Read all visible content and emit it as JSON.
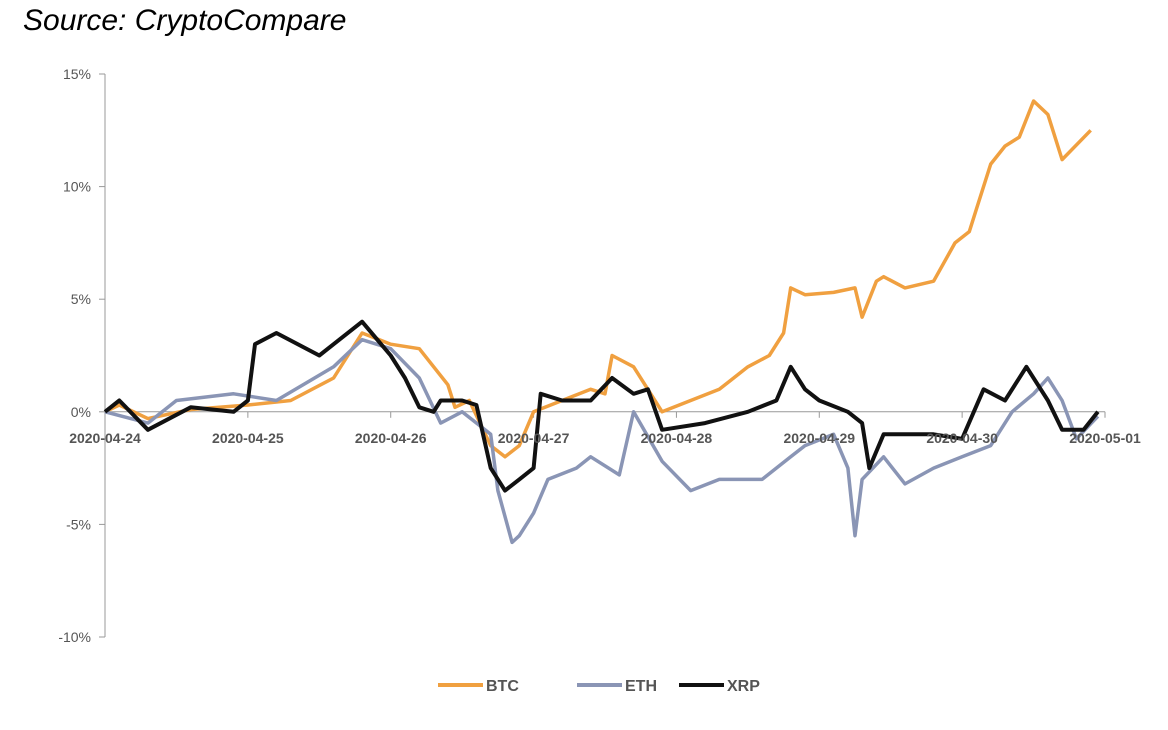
{
  "source_note": "Source: CryptoCompare",
  "chart_data": {
    "type": "line",
    "title": "",
    "xlabel": "",
    "ylabel": "",
    "ylim": [
      -10,
      15
    ],
    "y_ticks": [
      15,
      10,
      5,
      0,
      -5,
      -10
    ],
    "y_tick_labels": [
      "15%",
      "10%",
      "5%",
      "0%",
      "-5%",
      "-10%"
    ],
    "x_tick_labels": [
      "2020-04-24",
      "2020-04-25",
      "2020-04-26",
      "2020-04-27",
      "2020-04-28",
      "2020-04-29",
      "2020-04-30",
      "2020-05-01"
    ],
    "x_range_days": [
      0,
      7
    ],
    "grid": false,
    "legend_position": "bottom",
    "series": [
      {
        "name": "BTC",
        "color": "#F0A040",
        "x": [
          0,
          0.1,
          0.3,
          0.6,
          1.0,
          1.3,
          1.6,
          1.8,
          2.0,
          2.2,
          2.4,
          2.45,
          2.55,
          2.7,
          2.8,
          2.9,
          3.0,
          3.2,
          3.4,
          3.5,
          3.55,
          3.7,
          3.9,
          4.1,
          4.3,
          4.5,
          4.65,
          4.75,
          4.8,
          4.9,
          5.1,
          5.25,
          5.3,
          5.4,
          5.45,
          5.6,
          5.8,
          5.95,
          6.05,
          6.1,
          6.2,
          6.3,
          6.4,
          6.5,
          6.6,
          6.7,
          6.9
        ],
        "values": [
          0,
          0.3,
          -0.3,
          0.1,
          0.3,
          0.5,
          1.5,
          3.5,
          3.0,
          2.8,
          1.2,
          0.2,
          0.5,
          -1.5,
          -2.0,
          -1.5,
          0,
          0.5,
          1.0,
          0.8,
          2.5,
          2.0,
          0,
          0.5,
          1.0,
          2.0,
          2.5,
          3.5,
          5.5,
          5.2,
          5.3,
          5.5,
          4.2,
          5.8,
          6.0,
          5.5,
          5.8,
          7.5,
          8.0,
          9.0,
          11.0,
          11.8,
          12.2,
          13.8,
          13.2,
          11.2,
          12.5
        ]
      },
      {
        "name": "ETH",
        "color": "#8A95B5",
        "x": [
          0,
          0.3,
          0.5,
          0.9,
          1.2,
          1.6,
          1.8,
          2.0,
          2.2,
          2.35,
          2.5,
          2.7,
          2.75,
          2.85,
          2.9,
          3.0,
          3.1,
          3.3,
          3.4,
          3.6,
          3.7,
          3.9,
          4.1,
          4.3,
          4.6,
          4.8,
          4.9,
          5.1,
          5.2,
          5.25,
          5.3,
          5.45,
          5.6,
          5.8,
          6.0,
          6.2,
          6.35,
          6.5,
          6.6,
          6.7,
          6.8,
          6.95
        ],
        "values": [
          0,
          -0.5,
          0.5,
          0.8,
          0.5,
          2.0,
          3.2,
          2.8,
          1.5,
          -0.5,
          0,
          -1.0,
          -3.5,
          -5.8,
          -5.5,
          -4.5,
          -3.0,
          -2.5,
          -2.0,
          -2.8,
          0,
          -2.2,
          -3.5,
          -3.0,
          -3.0,
          -2.0,
          -1.5,
          -1.0,
          -2.5,
          -5.5,
          -3.0,
          -2.0,
          -3.2,
          -2.5,
          -2.0,
          -1.5,
          0,
          0.8,
          1.5,
          0.5,
          -1.2,
          -0.2
        ]
      },
      {
        "name": "XRP",
        "color": "#111111",
        "x": [
          0,
          0.1,
          0.3,
          0.6,
          0.9,
          1.0,
          1.05,
          1.2,
          1.5,
          1.6,
          1.8,
          2.0,
          2.1,
          2.2,
          2.3,
          2.35,
          2.5,
          2.6,
          2.7,
          2.8,
          2.9,
          3.0,
          3.05,
          3.2,
          3.4,
          3.55,
          3.7,
          3.8,
          3.9,
          4.2,
          4.5,
          4.7,
          4.8,
          4.9,
          5.0,
          5.2,
          5.3,
          5.35,
          5.45,
          5.6,
          5.8,
          6.0,
          6.15,
          6.3,
          6.45,
          6.6,
          6.7,
          6.85,
          6.95
        ],
        "values": [
          0,
          0.5,
          -0.8,
          0.2,
          0,
          0.5,
          3.0,
          3.5,
          2.5,
          3.0,
          4.0,
          2.5,
          1.5,
          0.2,
          0,
          0.5,
          0.5,
          0.3,
          -2.5,
          -3.5,
          -3.0,
          -2.5,
          0.8,
          0.5,
          0.5,
          1.5,
          0.8,
          1.0,
          -0.8,
          -0.5,
          0,
          0.5,
          2.0,
          1.0,
          0.5,
          0,
          -0.5,
          -2.5,
          -1.0,
          -1.0,
          -1.0,
          -1.2,
          1.0,
          0.5,
          2.0,
          0.5,
          -0.8,
          -0.8,
          0
        ]
      }
    ]
  }
}
